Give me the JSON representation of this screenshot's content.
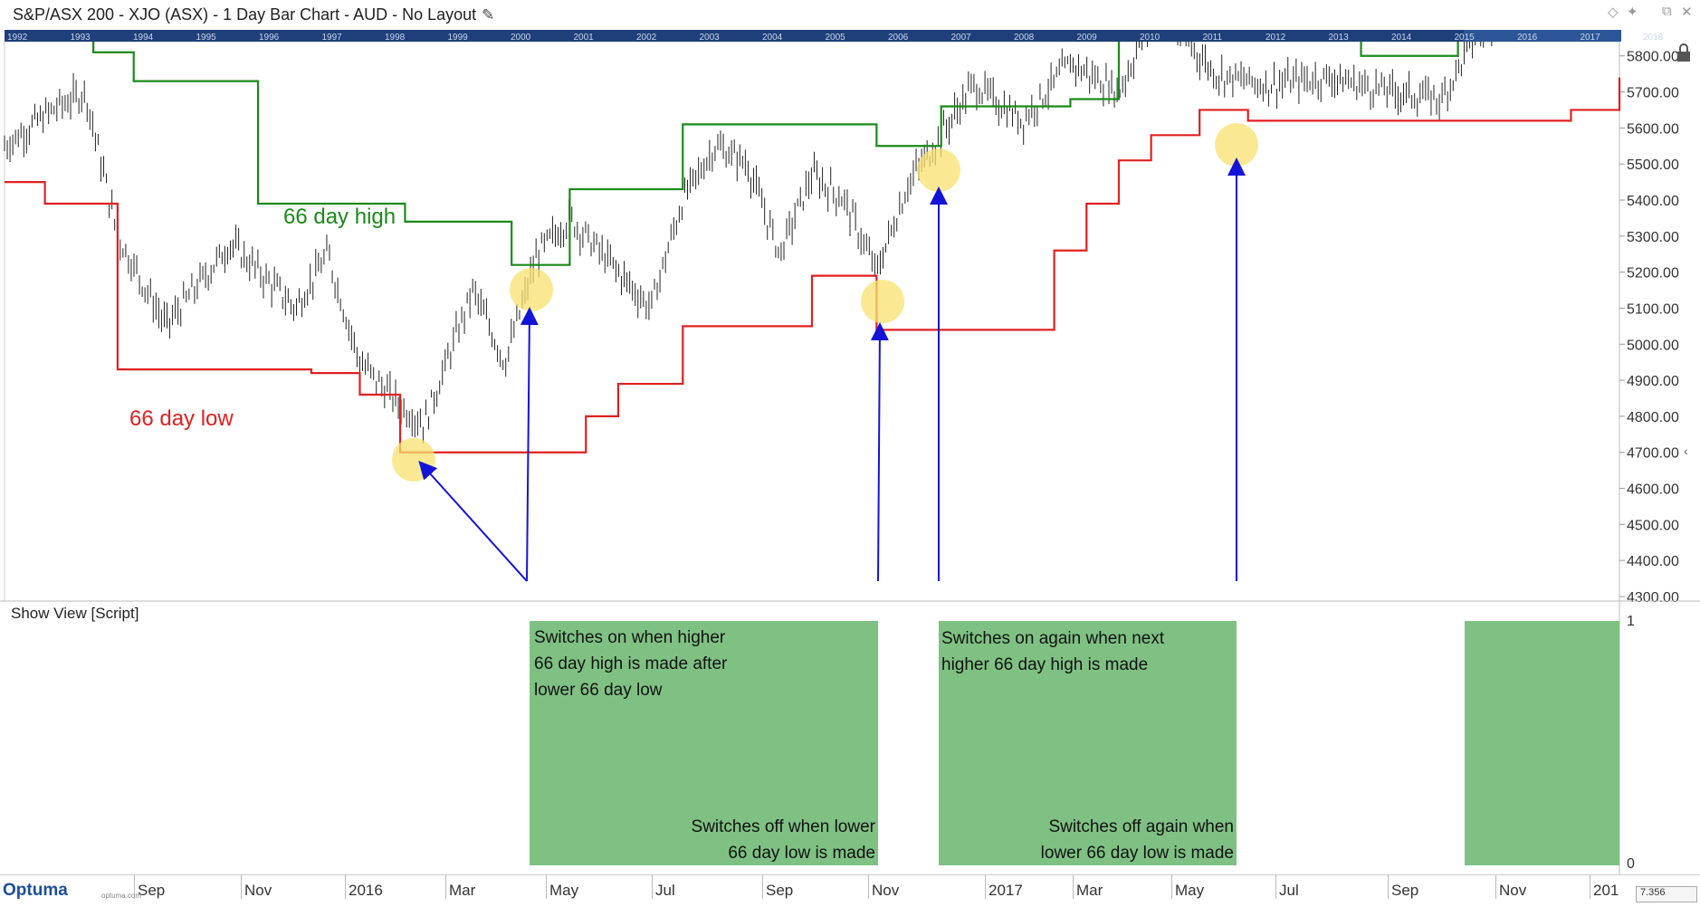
{
  "window": {
    "title": "S&P/ASX 200 - XJO (ASX) - 1 Day Bar Chart - AUD - No Layout",
    "controls": [
      "diamond-icon",
      "pin-icon",
      "restore-icon",
      "close-icon"
    ]
  },
  "timeline": {
    "years": [
      "1992",
      "1993",
      "1994",
      "1995",
      "1996",
      "1997",
      "1998",
      "1999",
      "2000",
      "2001",
      "2002",
      "2003",
      "2004",
      "2005",
      "2006",
      "2007",
      "2008",
      "2009",
      "2010",
      "2011",
      "2012",
      "2013",
      "2014",
      "2015",
      "2016",
      "2017",
      "2018",
      "2"
    ]
  },
  "annotations": {
    "high_label": "66 day high",
    "low_label": "66 day low",
    "colors": {
      "high": "#1a8a1a",
      "low": "#e02020",
      "arrows": "#1414d8",
      "highlight": "#f8e26e",
      "panel": "#7fc183"
    }
  },
  "lower_panel": {
    "header": "Show View [Script]",
    "y_top": "1",
    "y_bottom": "0",
    "texts": {
      "on1": [
        "Switches on when higher",
        "66 day high is made after",
        "lower 66 day low"
      ],
      "off1": [
        "Switches off when lower",
        "66 day low is made"
      ],
      "on2": [
        "Switches on again when next",
        "higher 66 day high is made"
      ],
      "off2": [
        "Switches off again when",
        "lower 66 day low is made"
      ]
    }
  },
  "x_axis": [
    "Sep",
    "Nov",
    "2016",
    "Mar",
    "May",
    "Jul",
    "Sep",
    "Nov",
    "2017",
    "Mar",
    "May",
    "Jul",
    "Sep",
    "Nov",
    "201"
  ],
  "branding": {
    "logo": "Optuma",
    "sub": "optuma.com"
  },
  "zoom_box": "7.356",
  "chart_data": {
    "type": "bar",
    "title": "S&P/ASX 200 - XJO (ASX) - 1 Day Bar Chart - AUD - No Layout",
    "xlabel": "",
    "ylabel": "",
    "ylim": [
      4300,
      5950
    ],
    "y_ticks": [
      "5900.00",
      "5800.00",
      "5700.00",
      "5600.00",
      "5500.00",
      "5400.00",
      "5300.00",
      "5200.00",
      "5100.00",
      "5000.00",
      "4900.00",
      "4800.00",
      "4700.00",
      "4600.00",
      "4500.00",
      "4400.00",
      "4300.00"
    ],
    "x_tick_labels": [
      "Sep",
      "Nov",
      "2016",
      "Mar",
      "May",
      "Jul",
      "Sep",
      "Nov",
      "2017",
      "Mar",
      "May",
      "Jul",
      "Sep",
      "Nov",
      "201"
    ],
    "approx_price_path": [
      {
        "t": 0,
        "v": 5550
      },
      {
        "t": 0.03,
        "v": 5650
      },
      {
        "t": 0.05,
        "v": 5700
      },
      {
        "t": 0.07,
        "v": 5300
      },
      {
        "t": 0.1,
        "v": 5050
      },
      {
        "t": 0.14,
        "v": 5280
      },
      {
        "t": 0.18,
        "v": 5100
      },
      {
        "t": 0.2,
        "v": 5250
      },
      {
        "t": 0.22,
        "v": 4950
      },
      {
        "t": 0.245,
        "v": 4830
      },
      {
        "t": 0.26,
        "v": 4780
      },
      {
        "t": 0.29,
        "v": 5150
      },
      {
        "t": 0.31,
        "v": 4950
      },
      {
        "t": 0.33,
        "v": 5250
      },
      {
        "t": 0.35,
        "v": 5350
      },
      {
        "t": 0.38,
        "v": 5200
      },
      {
        "t": 0.4,
        "v": 5100
      },
      {
        "t": 0.42,
        "v": 5400
      },
      {
        "t": 0.44,
        "v": 5550
      },
      {
        "t": 0.46,
        "v": 5500
      },
      {
        "t": 0.48,
        "v": 5250
      },
      {
        "t": 0.5,
        "v": 5470
      },
      {
        "t": 0.52,
        "v": 5400
      },
      {
        "t": 0.54,
        "v": 5200
      },
      {
        "t": 0.56,
        "v": 5450
      },
      {
        "t": 0.58,
        "v": 5580
      },
      {
        "t": 0.6,
        "v": 5720
      },
      {
        "t": 0.63,
        "v": 5620
      },
      {
        "t": 0.66,
        "v": 5780
      },
      {
        "t": 0.69,
        "v": 5700
      },
      {
        "t": 0.71,
        "v": 5900
      },
      {
        "t": 0.73,
        "v": 5850
      },
      {
        "t": 0.75,
        "v": 5750
      },
      {
        "t": 0.78,
        "v": 5720
      },
      {
        "t": 0.82,
        "v": 5740
      },
      {
        "t": 0.86,
        "v": 5700
      },
      {
        "t": 0.89,
        "v": 5680
      },
      {
        "t": 0.91,
        "v": 5850
      },
      {
        "t": 0.93,
        "v": 5930
      },
      {
        "t": 0.95,
        "v": 5960
      }
    ],
    "series": [
      {
        "name": "66 day high",
        "steps": [
          [
            0.05,
            5950
          ],
          [
            0.055,
            5810
          ],
          [
            0.08,
            5730
          ],
          [
            0.157,
            5390
          ],
          [
            0.248,
            5340
          ],
          [
            0.314,
            5220
          ],
          [
            0.35,
            5430
          ],
          [
            0.42,
            5610
          ],
          [
            0.54,
            5550
          ],
          [
            0.58,
            5660
          ],
          [
            0.66,
            5680
          ],
          [
            0.69,
            5910
          ],
          [
            0.84,
            5800
          ],
          [
            0.9,
            5960
          ]
        ]
      },
      {
        "name": "66 day low",
        "steps": [
          [
            0,
            5450
          ],
          [
            0.025,
            5390
          ],
          [
            0.07,
            4930
          ],
          [
            0.19,
            4920
          ],
          [
            0.22,
            4860
          ],
          [
            0.245,
            4700
          ],
          [
            0.36,
            4800
          ],
          [
            0.38,
            4890
          ],
          [
            0.42,
            5050
          ],
          [
            0.5,
            5190
          ],
          [
            0.54,
            5040
          ],
          [
            0.65,
            5260
          ],
          [
            0.67,
            5390
          ],
          [
            0.69,
            5510
          ],
          [
            0.71,
            5580
          ],
          [
            0.74,
            5650
          ],
          [
            0.77,
            5620
          ],
          [
            0.86,
            5620
          ],
          [
            0.97,
            5650
          ],
          [
            1.0,
            5740
          ]
        ]
      }
    ]
  }
}
